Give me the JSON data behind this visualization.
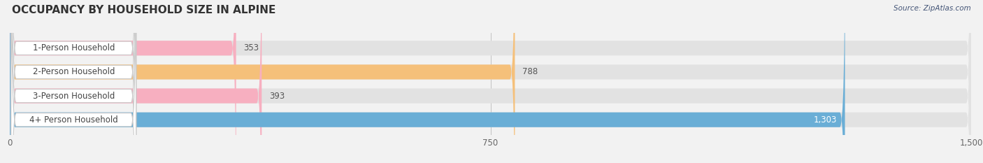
{
  "title": "OCCUPANCY BY HOUSEHOLD SIZE IN ALPINE",
  "categories": [
    "1-Person Household",
    "2-Person Household",
    "3-Person Household",
    "4+ Person Household"
  ],
  "values": [
    353,
    788,
    393,
    1303
  ],
  "bar_colors": [
    "#f7afc0",
    "#f5c07a",
    "#f7afc0",
    "#6aaed6"
  ],
  "label_colors": [
    "#555555",
    "#555555",
    "#555555",
    "#ffffff"
  ],
  "value_label_colors": [
    "#555555",
    "#555555",
    "#555555",
    "#ffffff"
  ],
  "xlim": [
    0,
    1500
  ],
  "xticks": [
    0,
    750,
    1500
  ],
  "source_text": "Source: ZipAtlas.com",
  "title_fontsize": 11,
  "bar_label_fontsize": 8.5,
  "category_fontsize": 8.5,
  "tick_fontsize": 8.5,
  "background_color": "#f2f2f2",
  "bar_bg_color": "#e2e2e2",
  "figure_width": 14.06,
  "figure_height": 2.33
}
